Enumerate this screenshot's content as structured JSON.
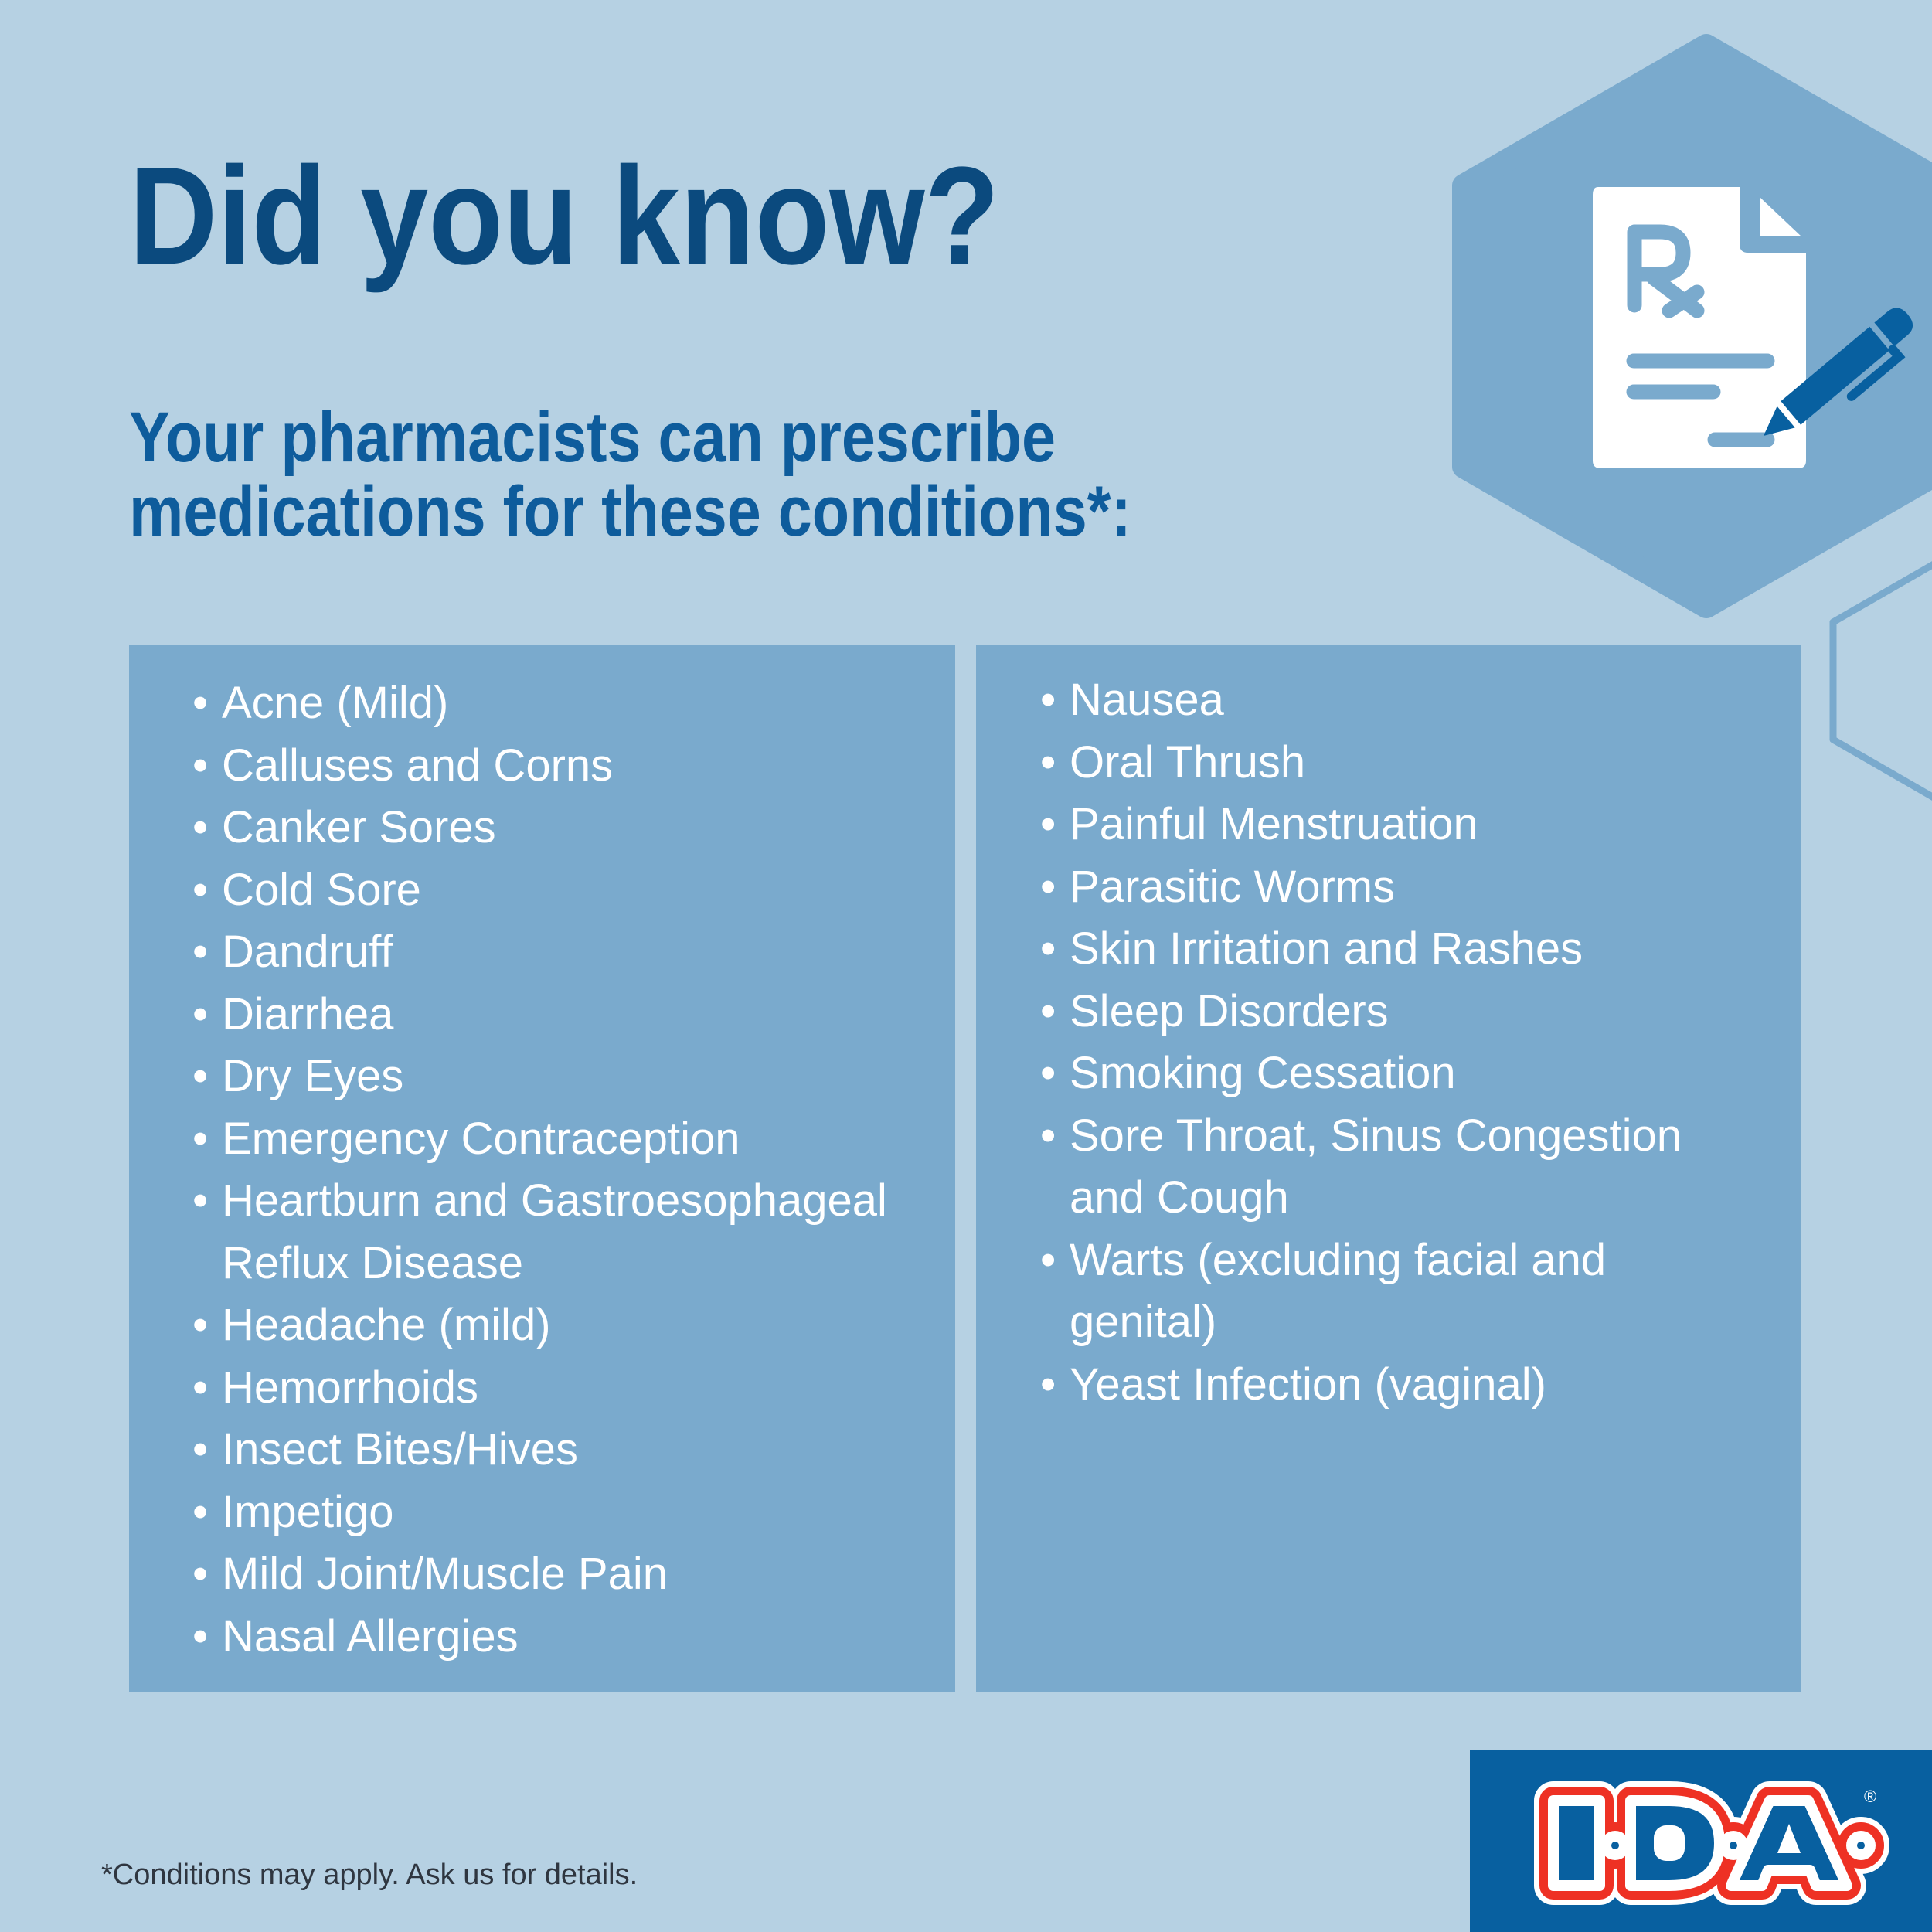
{
  "header": {
    "title": "Did you know?",
    "subtitle_line1": "Your pharmacists can prescribe",
    "subtitle_line2": "medications for these conditions*:"
  },
  "conditions": {
    "left": [
      "Acne (Mild)",
      "Calluses and Corns",
      "Canker Sores",
      "Cold Sore",
      "Dandruff",
      "Diarrhea",
      "Dry Eyes",
      "Emergency Contraception",
      "Heartburn and Gastroesophageal Reflux Disease",
      "Headache (mild)",
      "Hemorrhoids",
      "Insect Bites/Hives",
      "Impetigo",
      "Mild Joint/Muscle Pain",
      "Nasal Allergies"
    ],
    "right": [
      "Nausea",
      "Oral Thrush",
      "Painful Menstruation",
      "Parasitic Worms",
      "Skin Irritation and Rashes",
      "Sleep Disorders",
      "Smoking Cessation",
      "Sore Throat, Sinus Congestion and Cough",
      "Warts (excluding facial and genital)",
      "Yeast Infection (vaginal)"
    ],
    "bullet": "•"
  },
  "footnote": "*Conditions may apply. Ask us for details.",
  "logo": {
    "text": "I·D·A",
    "registered": "®"
  },
  "icons": {
    "header": "prescription-rx-document-with-pen-icon"
  },
  "colors": {
    "background": "#b6d1e3",
    "panel": "#7aaacd",
    "title": "#0b4a7e",
    "subtitle": "#0e5c9c",
    "logo_bg": "#0860a0",
    "logo_red": "#ee3124"
  }
}
